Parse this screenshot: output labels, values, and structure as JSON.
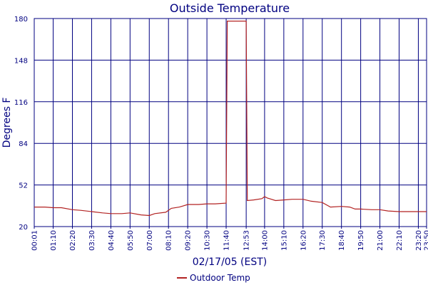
{
  "chart_data": {
    "type": "line",
    "title": "Outside Temperature",
    "xlabel": "02/17/05 (EST)",
    "ylabel": "Degrees F",
    "ylim": [
      20,
      180
    ],
    "y_ticks": [
      20,
      52,
      84,
      116,
      148,
      180
    ],
    "x_tick_labels": [
      "00:01",
      "01:10",
      "02:20",
      "03:30",
      "04:40",
      "05:50",
      "07:00",
      "08:10",
      "09:20",
      "10:30",
      "11:40",
      "12:53",
      "14:00",
      "15:10",
      "16:20",
      "17:30",
      "18:40",
      "19:50",
      "21:00",
      "22:10",
      "23:20",
      "23:50"
    ],
    "grid": true,
    "legend_position": "bottom-center",
    "series": [
      {
        "name": "Outdoor Temp",
        "color": "#b22222",
        "points": [
          [
            "00:01",
            35
          ],
          [
            "00:40",
            35
          ],
          [
            "01:10",
            34.5
          ],
          [
            "01:40",
            34.5
          ],
          [
            "02:20",
            33
          ],
          [
            "02:50",
            32.5
          ],
          [
            "03:30",
            31.5
          ],
          [
            "04:10",
            30.5
          ],
          [
            "04:40",
            30
          ],
          [
            "05:20",
            30
          ],
          [
            "05:50",
            30.5
          ],
          [
            "06:30",
            29
          ],
          [
            "07:00",
            28.5
          ],
          [
            "07:20",
            30
          ],
          [
            "08:00",
            31
          ],
          [
            "08:20",
            34
          ],
          [
            "08:50",
            35
          ],
          [
            "09:20",
            37
          ],
          [
            "10:00",
            37
          ],
          [
            "10:30",
            37.5
          ],
          [
            "11:00",
            37.5
          ],
          [
            "11:40",
            38
          ],
          [
            "11:44",
            178
          ],
          [
            "12:53",
            178
          ],
          [
            "12:57",
            40
          ],
          [
            "13:20",
            40.5
          ],
          [
            "13:50",
            41.5
          ],
          [
            "14:00",
            43
          ],
          [
            "14:10",
            42
          ],
          [
            "14:40",
            40
          ],
          [
            "15:10",
            40.5
          ],
          [
            "15:40",
            41
          ],
          [
            "16:20",
            41
          ],
          [
            "16:50",
            39.5
          ],
          [
            "17:30",
            38.5
          ],
          [
            "18:00",
            35
          ],
          [
            "18:40",
            35.5
          ],
          [
            "19:10",
            35
          ],
          [
            "19:30",
            33.5
          ],
          [
            "19:50",
            33.5
          ],
          [
            "20:30",
            33
          ],
          [
            "21:00",
            33
          ],
          [
            "21:30",
            32
          ],
          [
            "22:10",
            31.5
          ],
          [
            "23:20",
            31.5
          ],
          [
            "23:50",
            31.5
          ]
        ]
      }
    ]
  }
}
